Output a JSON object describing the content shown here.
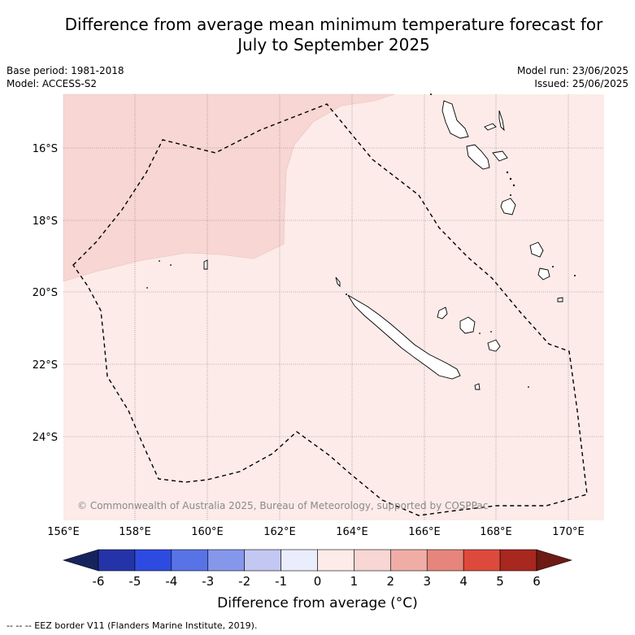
{
  "header": {
    "title_line1": "Difference from average mean minimum temperature forecast for",
    "title_line2": "July to September 2025",
    "base_period": "Base period: 1981-2018",
    "model": "Model: ACCESS-S2",
    "model_run": "Model run: 23/06/2025",
    "issued": "Issued: 25/06/2025"
  },
  "map": {
    "lat_labels": [
      "16°S",
      "18°S",
      "20°S",
      "22°S",
      "24°S"
    ],
    "lon_labels": [
      "156°E",
      "158°E",
      "160°E",
      "162°E",
      "164°E",
      "166°E",
      "168°E",
      "170°E"
    ],
    "copyright": "© Commonwealth of Australia 2025, Bureau of Meteorology, supported by COSPPac",
    "fill_colors": {
      "anomaly_0_1": "#fcebe8",
      "anomaly_1_2": "#f7d6d3"
    }
  },
  "colorbar": {
    "ticks": [
      "-6",
      "-5",
      "-4",
      "-3",
      "-2",
      "-1",
      "0",
      "1",
      "2",
      "3",
      "4",
      "5",
      "6"
    ],
    "colors": [
      "#16245e",
      "#2434a8",
      "#2d4be0",
      "#5873e6",
      "#8597eb",
      "#c2c8f2",
      "#eaedfb",
      "#fcebe8",
      "#f7d6d3",
      "#efada6",
      "#e5857b",
      "#dd4a3c",
      "#a8271f",
      "#6e1a15"
    ],
    "label": "Difference from average (°C)"
  },
  "footnote": "--  --  -- EEZ border V11 (Flanders Marine Institute, 2019)."
}
